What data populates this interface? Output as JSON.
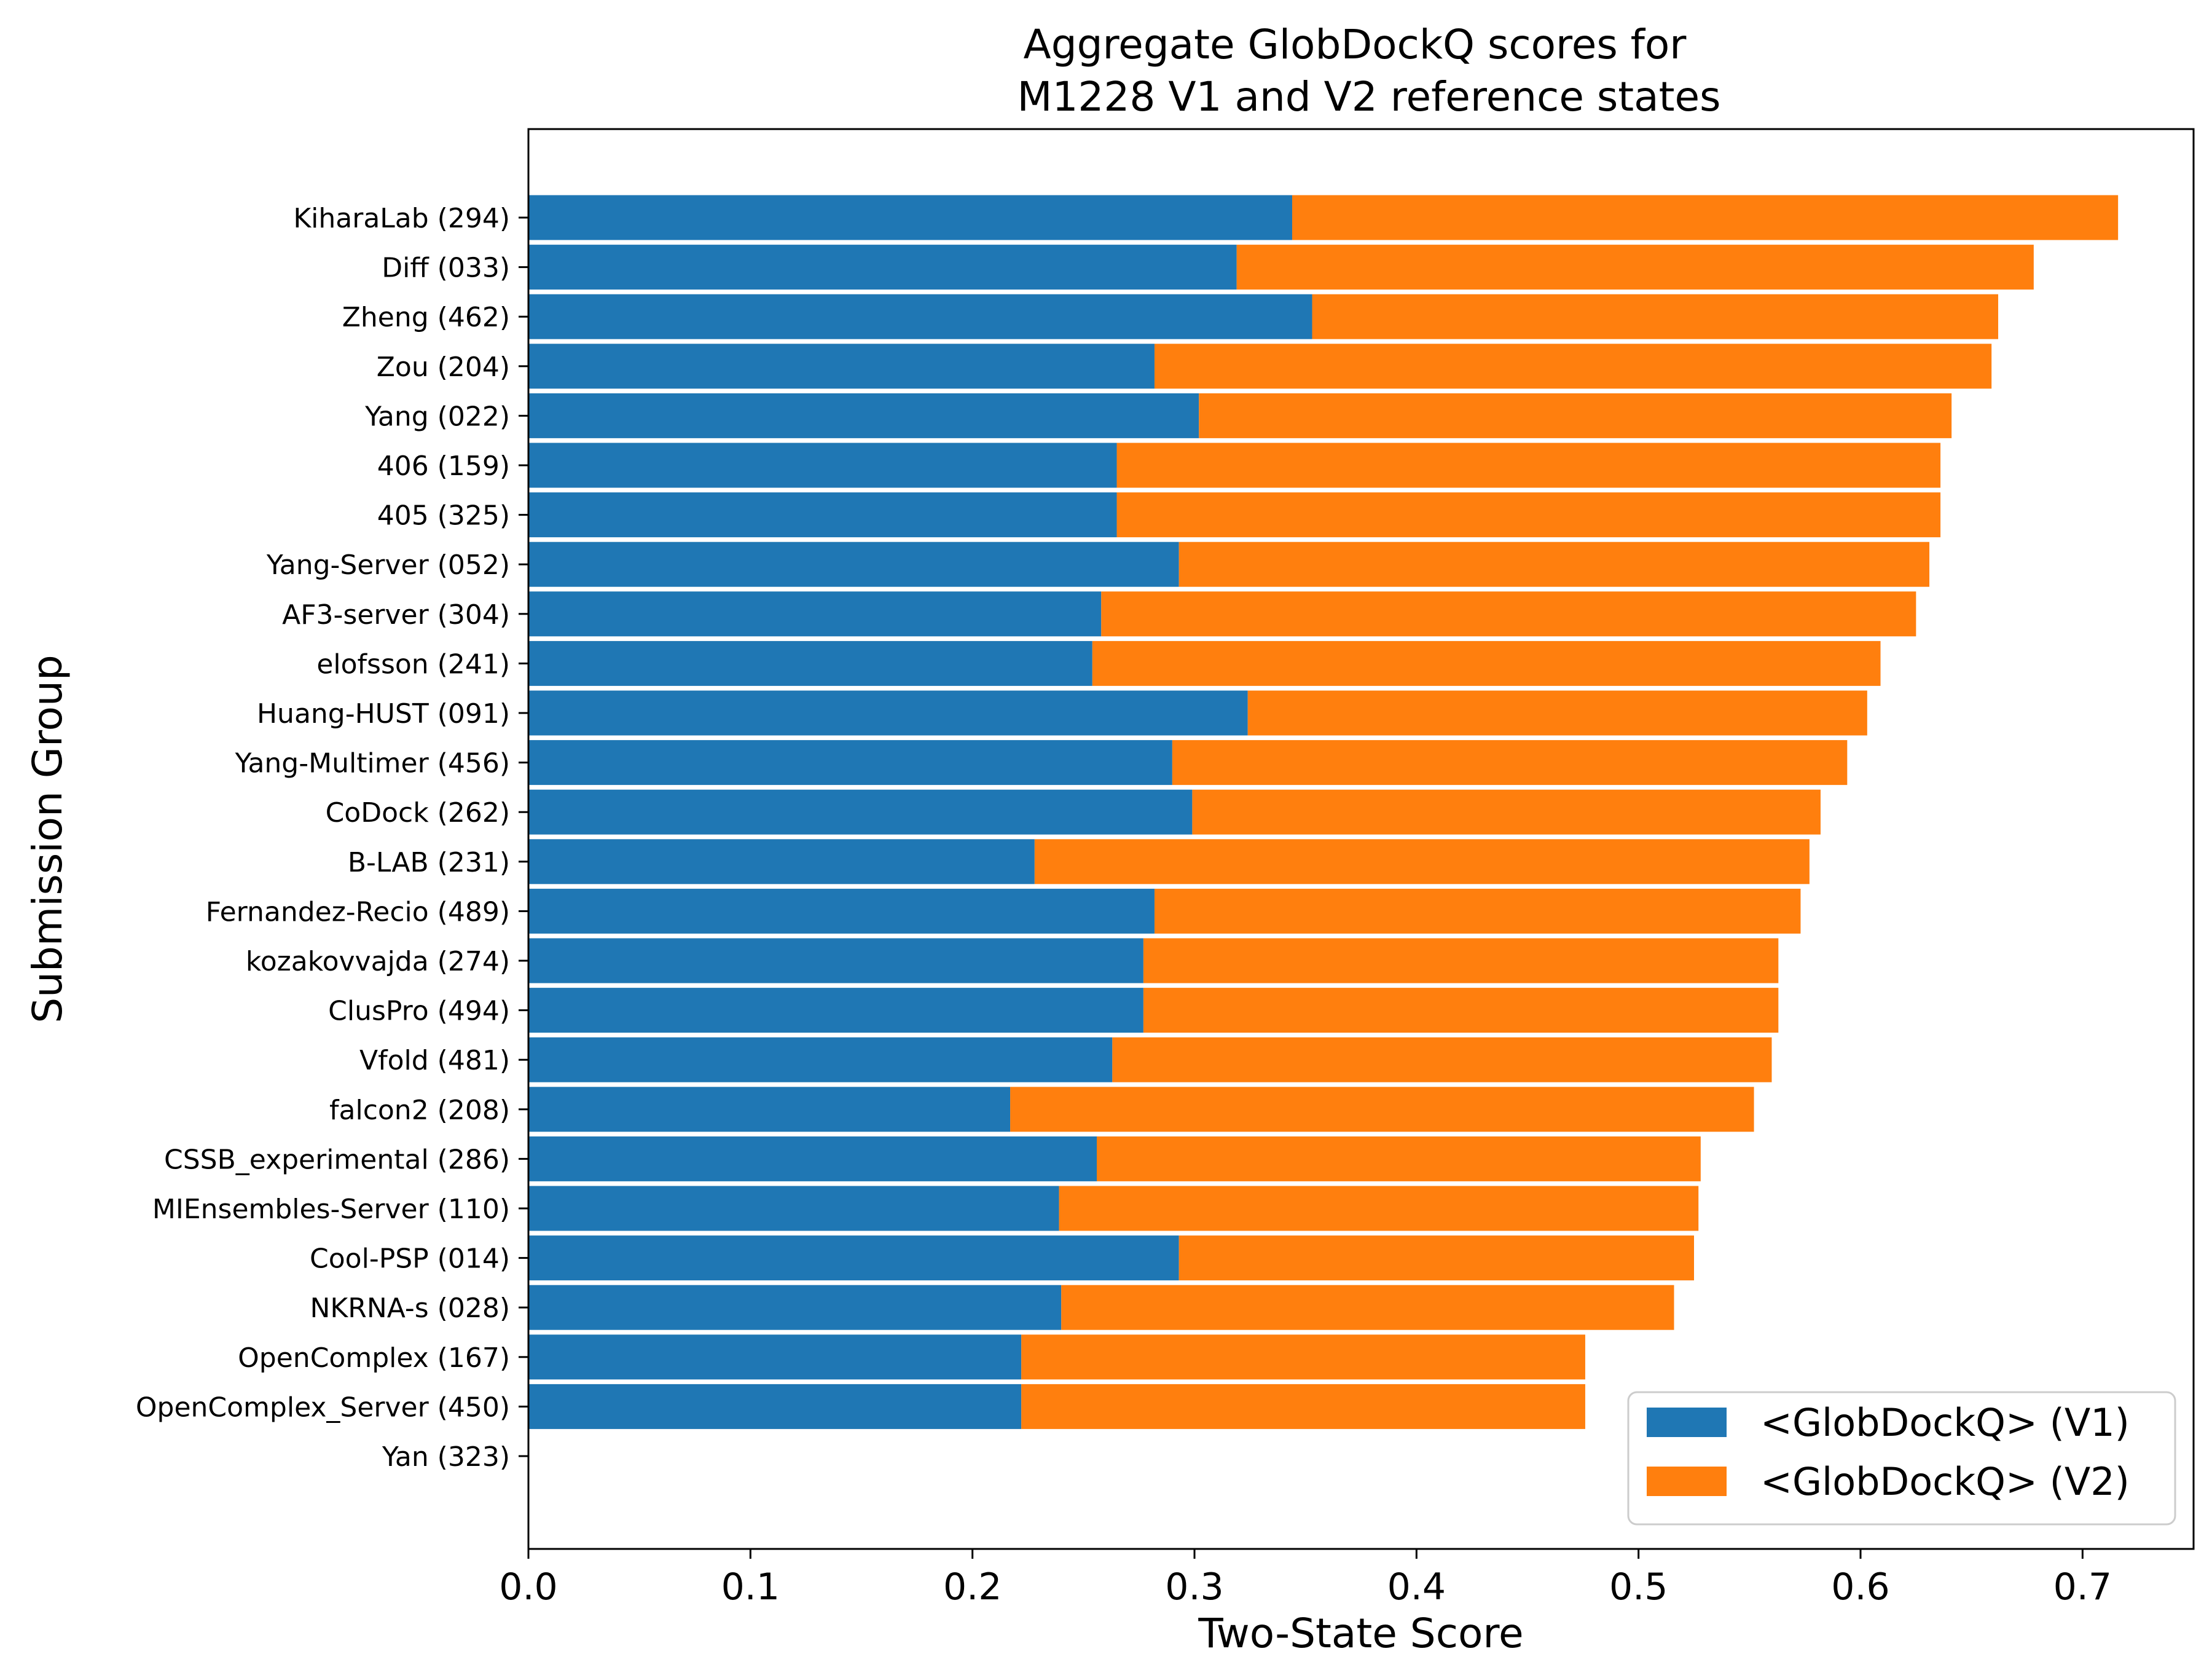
{
  "chart_data": {
    "type": "bar",
    "orientation": "horizontal",
    "stacked": true,
    "title_lines": [
      "Aggregate GlobDockQ scores for",
      "M1228 V1 and V2 reference states"
    ],
    "xlabel": "Two-State Score",
    "ylabel": "Submission Group",
    "xlim": [
      0.0,
      0.75
    ],
    "xticks": [
      "0.0",
      "0.1",
      "0.2",
      "0.3",
      "0.4",
      "0.5",
      "0.6",
      "0.7"
    ],
    "grid": false,
    "legend_position": "lower-right",
    "categories": [
      "KiharaLab (294)",
      "Diff (033)",
      "Zheng (462)",
      "Zou (204)",
      "Yang (022)",
      "406 (159)",
      "405 (325)",
      "Yang-Server (052)",
      "AF3-server (304)",
      "elofsson (241)",
      "Huang-HUST (091)",
      "Yang-Multimer (456)",
      "CoDock (262)",
      "B-LAB (231)",
      "Fernandez-Recio (489)",
      "kozakovvajda (274)",
      "ClusPro (494)",
      "Vfold (481)",
      "falcon2 (208)",
      "CSSB_experimental (286)",
      "MIEnsembles-Server (110)",
      "Cool-PSP (014)",
      "NKRNA-s (028)",
      "OpenComplex (167)",
      "OpenComplex_Server (450)",
      "Yan (323)"
    ],
    "series": [
      {
        "name": "<GlobDockQ> (V1)",
        "color": "#1f77b4",
        "values": [
          0.344,
          0.319,
          0.353,
          0.282,
          0.302,
          0.265,
          0.265,
          0.293,
          0.258,
          0.254,
          0.324,
          0.29,
          0.299,
          0.228,
          0.282,
          0.277,
          0.277,
          0.263,
          0.217,
          0.256,
          0.239,
          0.293,
          0.24,
          0.222,
          0.222,
          0.0
        ]
      },
      {
        "name": "<GlobDockQ> (V2)",
        "color": "#ff7f0e",
        "values": [
          0.372,
          0.359,
          0.309,
          0.377,
          0.339,
          0.371,
          0.371,
          0.338,
          0.367,
          0.355,
          0.279,
          0.304,
          0.283,
          0.349,
          0.291,
          0.286,
          0.286,
          0.297,
          0.335,
          0.272,
          0.288,
          0.232,
          0.276,
          0.254,
          0.254,
          0.0
        ]
      }
    ]
  }
}
